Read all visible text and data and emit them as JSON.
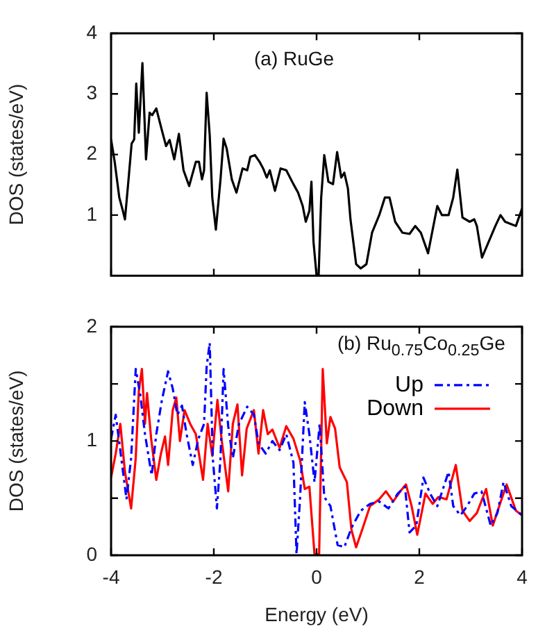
{
  "chart_data": [
    {
      "type": "line",
      "ylabel": "DOS (states/eV)",
      "annotations": [
        "(a) RuGe"
      ],
      "xlim": [
        -4,
        4
      ],
      "xticks": [
        -4,
        -2,
        0,
        2,
        4
      ],
      "ylim": [
        0,
        4
      ],
      "yticks": [
        1,
        2,
        3,
        4
      ],
      "tick_labels": "y",
      "grid": false,
      "legend": false,
      "line_style": "solid",
      "marker": "none",
      "series": [
        {
          "color": "#000000",
          "x": [
            -4,
            -3.93,
            -3.84,
            -3.77,
            -3.73,
            -3.66,
            -3.6,
            -3.55,
            -3.51,
            -3.46,
            -3.39,
            -3.32,
            -3.25,
            -3.2,
            -3.12,
            -3.02,
            -2.93,
            -2.86,
            -2.77,
            -2.68,
            -2.59,
            -2.48,
            -2.35,
            -2.29,
            -2.23,
            -2.19,
            -2.14,
            -2.08,
            -2.03,
            -1.96,
            -1.87,
            -1.81,
            -1.75,
            -1.65,
            -1.56,
            -1.44,
            -1.35,
            -1.29,
            -1.2,
            -1.11,
            -1.04,
            -0.97,
            -0.91,
            -0.81,
            -0.7,
            -0.59,
            -0.45,
            -0.36,
            -0.27,
            -0.21,
            -0.14,
            -0.1,
            -0.06,
            0,
            0.04,
            0.09,
            0.15,
            0.23,
            0.32,
            0.4,
            0.48,
            0.54,
            0.61,
            0.66,
            0.77,
            0.86,
            0.97,
            1.08,
            1.22,
            1.33,
            1.42,
            1.53,
            1.67,
            1.81,
            1.92,
            2.03,
            2.17,
            2.23,
            2.35,
            2.44,
            2.57,
            2.66,
            2.74,
            2.84,
            2.98,
            3.07,
            3.12,
            3.22,
            3.37,
            3.48,
            3.58,
            3.67,
            3.79,
            3.88,
            4
          ],
          "values": [
            2.25,
            1.88,
            1.29,
            1.07,
            0.93,
            1.59,
            2.18,
            2.25,
            3.17,
            2.36,
            3.51,
            1.92,
            2.69,
            2.65,
            2.76,
            2.43,
            2.14,
            2.24,
            1.92,
            2.34,
            1.74,
            1.48,
            1.88,
            1.88,
            1.59,
            1.74,
            3.02,
            2.32,
            1.29,
            0.76,
            1.59,
            2.26,
            2.1,
            1.59,
            1.37,
            1.77,
            1.74,
            1.96,
            1.99,
            1.88,
            1.77,
            1.62,
            1.74,
            1.4,
            1.77,
            1.74,
            1.51,
            1.37,
            1.15,
            0.89,
            1.07,
            1.55,
            0.56,
            0,
            0,
            1.29,
            1.99,
            1.55,
            1.51,
            2.04,
            1.62,
            1.7,
            1.44,
            0.93,
            0.19,
            0.12,
            0.19,
            0.71,
            1,
            1.29,
            1.29,
            0.89,
            0.71,
            0.69,
            0.82,
            0.71,
            0.37,
            0.63,
            1.15,
            1,
            1,
            1.29,
            1.75,
            0.96,
            0.89,
            0.93,
            0.82,
            0.3,
            0.6,
            0.82,
            1,
            0.89,
            0.85,
            0.82,
            1.11
          ]
        }
      ]
    },
    {
      "type": "line",
      "ylabel": "DOS (states/eV)",
      "xlabel": "Energy (eV)",
      "annotations": [
        "(b) Ru$_{0.75}$Co$_{0.25}$Ge"
      ],
      "xlim": [
        -4,
        4
      ],
      "xticks": [
        -4,
        -2,
        0,
        2,
        4
      ],
      "ylim": [
        0,
        2
      ],
      "yticks": [
        0,
        {
          "value": 0.5,
          "label": null
        },
        1,
        {
          "value": 1.5,
          "label": null
        },
        2
      ],
      "grid": false,
      "legend": "top right",
      "marker": "none",
      "series": [
        {
          "name": "Up",
          "color": "#0000ff",
          "line_style": "dashed",
          "x": [
            -4,
            -3.91,
            -3.79,
            -3.7,
            -3.61,
            -3.52,
            -3.43,
            -3.34,
            -3.21,
            -3.12,
            -3.01,
            -2.89,
            -2.8,
            -2.71,
            -2.62,
            -2.53,
            -2.41,
            -2.3,
            -2.19,
            -2.14,
            -2.08,
            -2.02,
            -1.94,
            -1.87,
            -1.81,
            -1.72,
            -1.63,
            -1.51,
            -1.35,
            -1.22,
            -1.13,
            -0.99,
            -0.86,
            -0.72,
            -0.59,
            -0.45,
            -0.39,
            -0.32,
            -0.23,
            -0.14,
            -0.04,
            0.06,
            0.15,
            0.27,
            0.41,
            0.54,
            0.68,
            0.86,
            1.04,
            1.22,
            1.4,
            1.58,
            1.72,
            1.81,
            1.94,
            2.08,
            2.21,
            2.35,
            2.57,
            2.66,
            2.8,
            2.93,
            3.07,
            3.21,
            3.39,
            3.52,
            3.64,
            3.79,
            4
          ],
          "values": [
            1.02,
            1.23,
            0.81,
            0.49,
            0.85,
            1.63,
            1.4,
            1.06,
            0.7,
            1.06,
            1.36,
            1.61,
            1.46,
            1.23,
            1.31,
            1.06,
            0.79,
            1.02,
            1.15,
            1.65,
            1.86,
            0.85,
            0.41,
            0.85,
            1.63,
            1.13,
            0.85,
            1.15,
            1.3,
            1.23,
            0.98,
            0.89,
            1,
            0.92,
            1.06,
            0.81,
            0.01,
            0.51,
            1.34,
            1.06,
            0.64,
            1.15,
            0.51,
            0.43,
            0.09,
            0.07,
            0.24,
            0.39,
            0.45,
            0.47,
            0.41,
            0.54,
            0.6,
            0.2,
            0.26,
            0.68,
            0.54,
            0.43,
            0.73,
            0.43,
            0.35,
            0.43,
            0.54,
            0.56,
            0.26,
            0.37,
            0.64,
            0.43,
            0.35
          ]
        },
        {
          "name": "Down",
          "color": "#ff0000",
          "line_style": "solid",
          "x": [
            -4,
            -3.91,
            -3.82,
            -3.73,
            -3.61,
            -3.52,
            -3.46,
            -3.4,
            -3.34,
            -3.3,
            -3.22,
            -3.12,
            -3.03,
            -2.95,
            -2.89,
            -2.8,
            -2.73,
            -2.66,
            -2.57,
            -2.46,
            -2.35,
            -2.21,
            -2.12,
            -2.03,
            -1.93,
            -1.85,
            -1.72,
            -1.63,
            -1.54,
            -1.45,
            -1.36,
            -1.22,
            -1.13,
            -1.04,
            -0.95,
            -0.86,
            -0.72,
            -0.59,
            -0.45,
            -0.32,
            -0.23,
            -0.14,
            -0.04,
            0.05,
            0.12,
            0.2,
            0.27,
            0.36,
            0.45,
            0.59,
            0.68,
            0.77,
            0.9,
            1.04,
            1.22,
            1.35,
            1.49,
            1.63,
            1.74,
            1.85,
            1.96,
            2.12,
            2.26,
            2.37,
            2.53,
            2.71,
            2.84,
            2.98,
            3.12,
            3.3,
            3.43,
            3.57,
            3.7,
            3.88,
            4
          ],
          "values": [
            0.68,
            0.89,
            1.15,
            0.73,
            0.41,
            0.85,
            1.44,
            1.63,
            1.15,
            1.42,
            1.02,
            0.66,
            0.89,
            1.04,
            0.79,
            1.27,
            1.38,
            1,
            1.27,
            1.15,
            1.06,
            0.66,
            1.15,
            0.87,
            1.36,
            1.02,
            0.56,
            1.15,
            1.32,
            0.7,
            1.11,
            1.27,
            0.89,
            1.27,
            1.06,
            1.1,
            0.94,
            1.13,
            1.02,
            0.83,
            0.58,
            0.6,
            0.01,
            0.01,
            1.63,
            0.98,
            1.21,
            1.11,
            0.77,
            0.64,
            0.22,
            0.07,
            0.24,
            0.43,
            0.49,
            0.56,
            0.47,
            0.56,
            0.62,
            0.43,
            0.18,
            0.54,
            0.45,
            0.51,
            0.49,
            0.79,
            0.39,
            0.3,
            0.37,
            0.58,
            0.26,
            0.45,
            0.62,
            0.39,
            0.35
          ]
        }
      ]
    }
  ]
}
